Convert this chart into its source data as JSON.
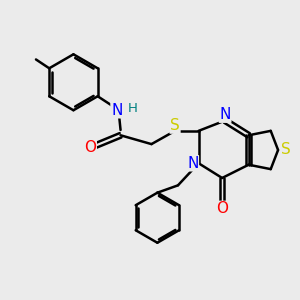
{
  "background_color": "#ebebeb",
  "bond_color": "#000000",
  "bond_width": 1.8,
  "atom_colors": {
    "N": "#0000ff",
    "O": "#ff0000",
    "S": "#cccc00",
    "H": "#008080",
    "C": "#000000"
  },
  "font_size": 10,
  "fig_width": 3.0,
  "fig_height": 3.0
}
